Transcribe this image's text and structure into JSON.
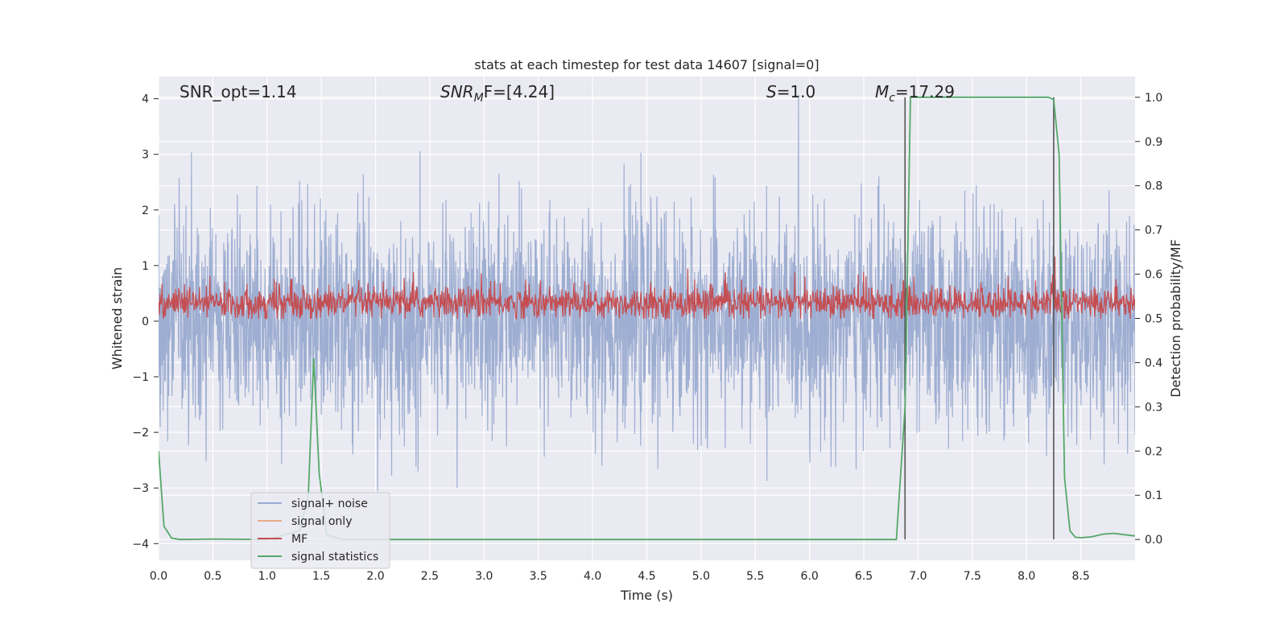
{
  "chart_data": {
    "type": "line",
    "title": "stats at each timestep for test data 14607 [signal=0]",
    "xlabel": "Time (s)",
    "ylabel_left": "Whitened strain",
    "ylabel_right": "Detection probability/MF",
    "xlim": [
      0,
      9.0
    ],
    "ylim_left": [
      -4.3,
      4.4
    ],
    "ylim_right": [
      -0.047,
      1.047
    ],
    "x_ticks": [
      "0.0",
      "0.5",
      "1.0",
      "1.5",
      "2.0",
      "2.5",
      "3.0",
      "3.5",
      "4.0",
      "4.5",
      "5.0",
      "5.5",
      "6.0",
      "6.5",
      "7.0",
      "7.5",
      "8.0",
      "8.5"
    ],
    "y_ticks_left": [
      "4",
      "3",
      "2",
      "1",
      "0",
      "−1",
      "−2",
      "−3",
      "−4"
    ],
    "y_ticks_right": [
      "1.0",
      "0.9",
      "0.8",
      "0.7",
      "0.6",
      "0.5",
      "0.4",
      "0.3",
      "0.2",
      "0.1",
      "0.0"
    ],
    "grid": true,
    "annotations": {
      "snr_opt": "SNR_opt=1.14",
      "snr_mf_main": "SNR",
      "snr_mf_sub": "M",
      "snr_mf_rest": "F=[4.24]",
      "s_sym": "S",
      "s_rest": "=1.0",
      "mc_main": "M",
      "mc_sub": "c",
      "mc_rest": "=17.29"
    },
    "legend": {
      "position": "lower-left",
      "entries": [
        {
          "label": "signal+ noise",
          "color": "#9aabd0"
        },
        {
          "label": "signal only",
          "color": "#eba98b"
        },
        {
          "label": "MF",
          "color": "#c44e52"
        },
        {
          "label": "signal statistics",
          "color": "#55a868"
        }
      ]
    },
    "vertical_lines_x": [
      6.88,
      8.25
    ],
    "series": [
      {
        "name": "signal+ noise",
        "axis": "left",
        "color": "#9aabd0",
        "description": "dense whitened strain noise, amplitude envelope about ±1.6 with spikes to ±4"
      },
      {
        "name": "MF",
        "axis": "right",
        "color": "#c44e52",
        "description": "matched filter band between about 0.50 and 0.58 with spikes to 0.63"
      },
      {
        "name": "signal statistics",
        "axis": "right",
        "color": "#55a868",
        "x": [
          0.0,
          0.05,
          0.12,
          0.2,
          0.5,
          1.0,
          1.3,
          1.38,
          1.43,
          1.48,
          1.55,
          1.7,
          2.5,
          4.0,
          5.5,
          6.5,
          6.8,
          6.88,
          6.93,
          7.0,
          8.0,
          8.2,
          8.25,
          8.3,
          8.35,
          8.4,
          8.45,
          8.5,
          8.6,
          8.7,
          8.8,
          9.0
        ],
        "values": [
          0.2,
          0.03,
          0.003,
          0.0,
          0.001,
          0.0,
          0.02,
          0.1,
          0.41,
          0.15,
          0.01,
          0.0,
          0.0,
          0.0,
          0.0,
          0.0,
          0.0,
          0.3,
          1.0,
          1.0,
          1.0,
          1.0,
          0.995,
          0.87,
          0.14,
          0.02,
          0.005,
          0.004,
          0.006,
          0.012,
          0.014,
          0.008
        ]
      }
    ]
  }
}
